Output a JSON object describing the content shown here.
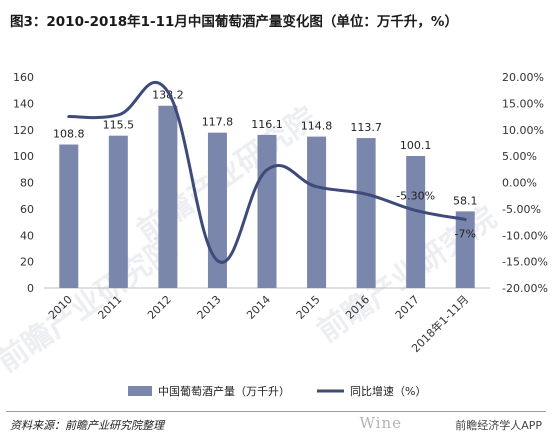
{
  "title": "图3：2010-2018年1-11月中国葡萄酒产量变化图（单位：万千升，%）",
  "source": "资料来源：前瞻产业研究院整理",
  "brand": "前瞻经济学人APP",
  "wine_watermark": "Wine",
  "watermark_text": "前瞻产业研究院",
  "chart_data": {
    "type": "bar+line",
    "categories": [
      "2010",
      "2011",
      "2012",
      "2013",
      "2014",
      "2015",
      "2016",
      "2017",
      "2018年1-11月"
    ],
    "series": [
      {
        "name": "中国葡萄酒产量（万千升）",
        "type": "bar",
        "axis": "left",
        "values": [
          108.8,
          115.5,
          138.2,
          117.8,
          116.1,
          114.8,
          113.7,
          100.1,
          58.1
        ],
        "labels": [
          "108.8",
          "115.5",
          "138.2",
          "117.8",
          "116.1",
          "114.8",
          "113.7",
          "100.1",
          "58.1"
        ],
        "color": "#7b86ad"
      },
      {
        "name": "同比增速（%）",
        "type": "line",
        "axis": "right",
        "values": [
          12.5,
          12.8,
          17.2,
          -14.8,
          2.4,
          -0.8,
          -2.2,
          -5.3,
          -7.0
        ],
        "labels": [
          "",
          "",
          "",
          "",
          "",
          "",
          "",
          "-5.30%",
          "-7%"
        ],
        "color": "#3d4a7a"
      }
    ],
    "ylim_left": [
      0,
      160
    ],
    "yticks_left": [
      "0",
      "20",
      "40",
      "60",
      "80",
      "100",
      "120",
      "140",
      "160"
    ],
    "ylim_right": [
      -20,
      20
    ],
    "yticks_right": [
      "-20.00%",
      "-15.00%",
      "-10.00%",
      "-5.00%",
      "0.00%",
      "5.00%",
      "10.00%",
      "15.00%",
      "20.00%"
    ],
    "legend_position": "bottom"
  }
}
